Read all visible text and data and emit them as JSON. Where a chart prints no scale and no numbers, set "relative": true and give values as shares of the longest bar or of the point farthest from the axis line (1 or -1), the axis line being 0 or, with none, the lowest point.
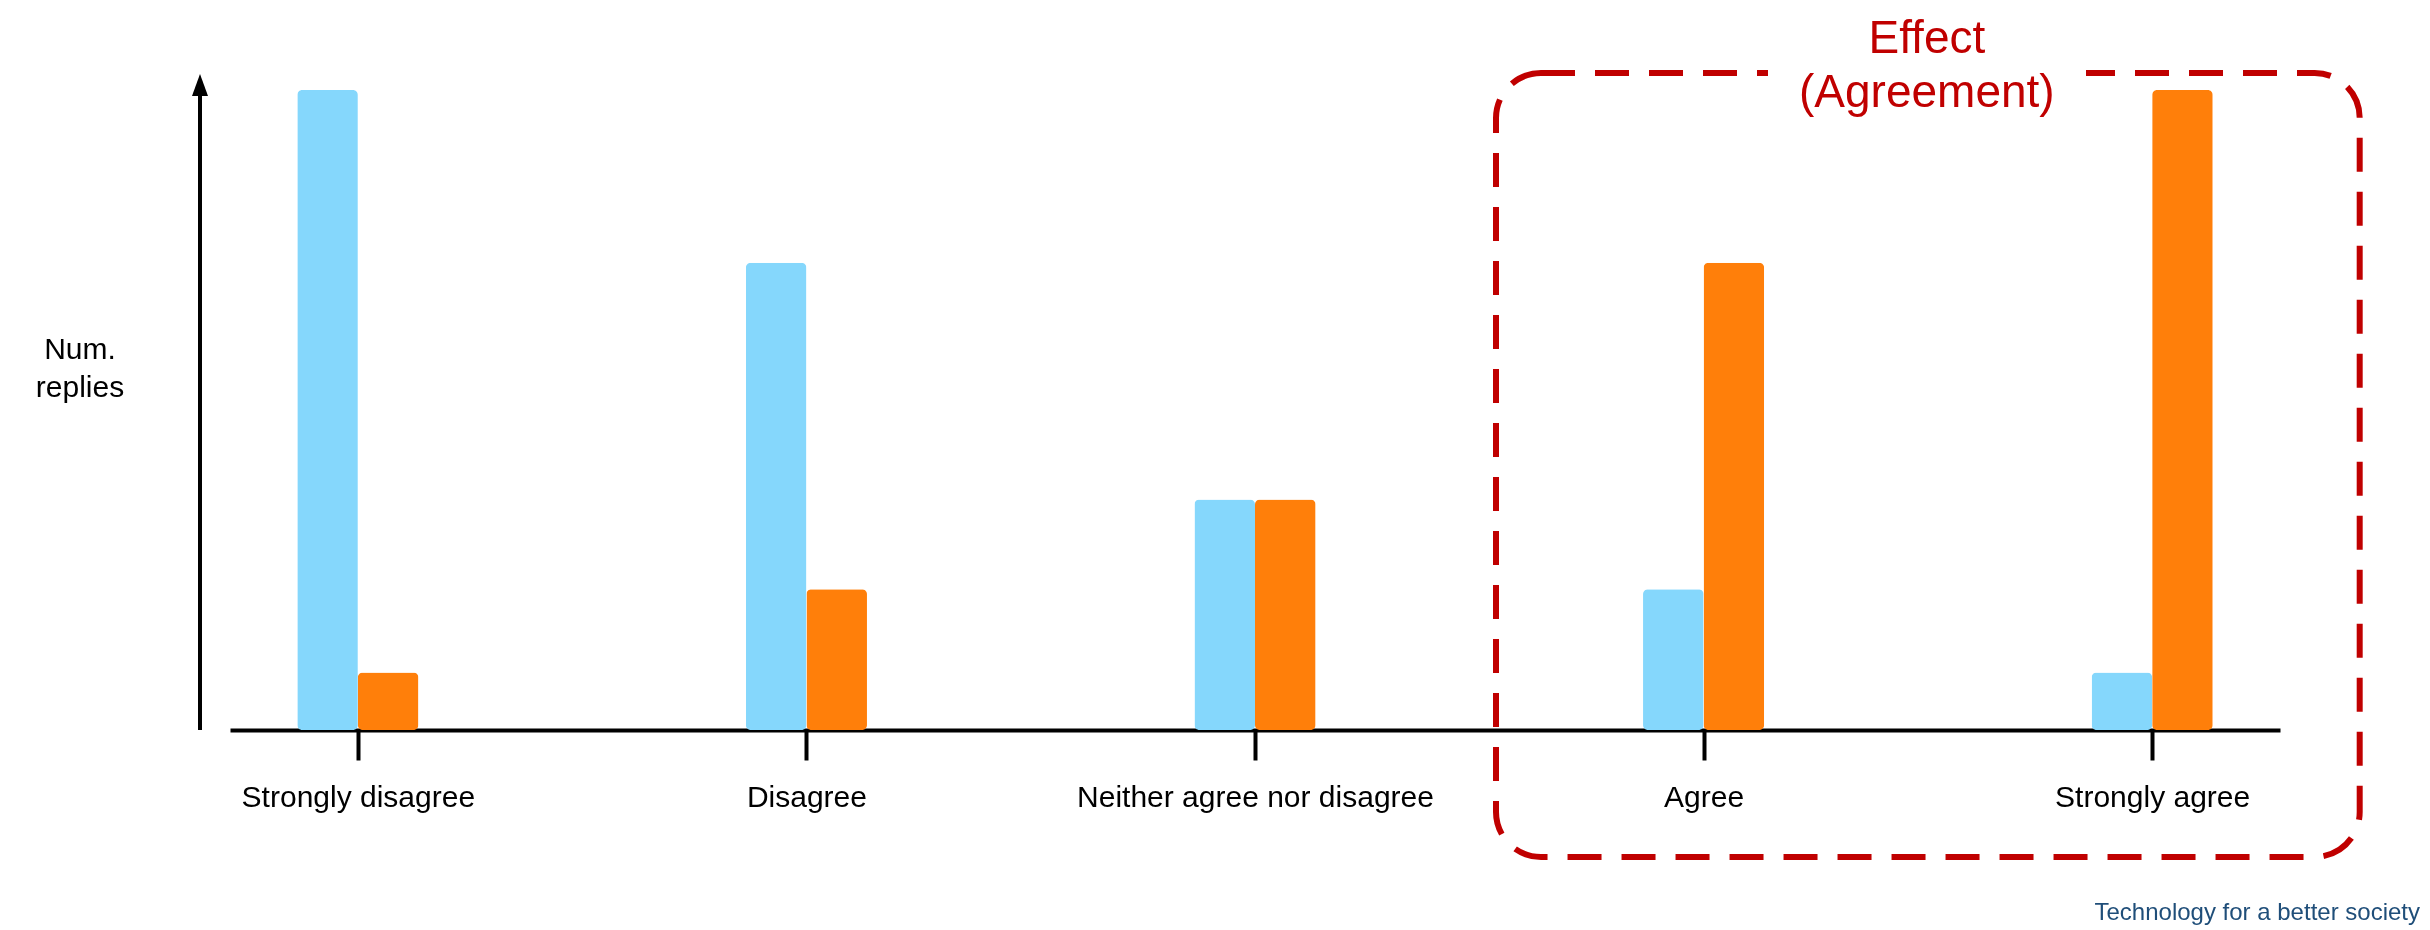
{
  "chart_data": {
    "type": "bar",
    "relative": true,
    "ylabel": "Num. replies",
    "categories": [
      "Strongly disagree",
      "Disagree",
      "Neither agree nor disagree",
      "Agree",
      "Strongly agree"
    ],
    "series": [
      {
        "color": "#85d7fc",
        "values": [
          1,
          0.73,
          0.36,
          0.22,
          0.09
        ]
      },
      {
        "color": "#ff7f0a",
        "values": [
          0.09,
          0.22,
          0.36,
          0.73,
          1
        ]
      }
    ],
    "legend": false,
    "annotations": [
      "Effect (Agreement)",
      "Technology for a better society"
    ]
  }
}
